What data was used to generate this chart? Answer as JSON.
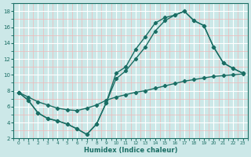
{
  "xlabel": "Humidex (Indice chaleur)",
  "background_color": "#cce8e8",
  "grid_color_major": "#ffffff",
  "grid_color_minor": "#f0b8b8",
  "line_color": "#1a6e64",
  "xlim": [
    -0.5,
    23.5
  ],
  "ylim": [
    2,
    19
  ],
  "yticks": [
    2,
    4,
    6,
    8,
    10,
    12,
    14,
    16,
    18
  ],
  "xticks": [
    0,
    1,
    2,
    3,
    4,
    5,
    6,
    7,
    8,
    9,
    10,
    11,
    12,
    13,
    14,
    15,
    16,
    17,
    18,
    19,
    20,
    21,
    22,
    23
  ],
  "curve1_x": [
    0,
    1,
    2,
    3,
    4,
    5,
    6,
    7,
    8,
    9,
    10,
    11,
    12,
    13,
    14,
    15,
    16,
    17,
    18,
    19,
    20,
    21,
    22,
    23
  ],
  "curve1_y": [
    7.8,
    6.8,
    5.2,
    4.5,
    4.2,
    3.8,
    3.2,
    2.5,
    3.8,
    6.5,
    10.2,
    11.0,
    13.2,
    14.8,
    16.5,
    17.2,
    17.5,
    18.0,
    16.8,
    16.2,
    13.5,
    11.5,
    10.8,
    10.2
  ],
  "curve2_x": [
    0,
    1,
    2,
    3,
    4,
    5,
    6,
    7,
    8,
    9,
    10,
    11,
    12,
    13,
    14,
    15,
    16,
    17,
    18,
    19,
    20,
    21,
    22,
    23
  ],
  "curve2_y": [
    7.8,
    6.8,
    5.2,
    4.5,
    4.2,
    3.8,
    3.2,
    2.5,
    3.8,
    6.5,
    9.5,
    10.5,
    12.0,
    13.5,
    15.5,
    16.8,
    17.5,
    18.0,
    16.8,
    16.2,
    13.5,
    11.5,
    10.8,
    10.2
  ],
  "curve3_x": [
    0,
    1,
    2,
    3,
    4,
    5,
    6,
    7,
    8,
    9,
    10,
    11,
    12,
    13,
    14,
    15,
    16,
    17,
    18,
    19,
    20,
    21,
    22,
    23
  ],
  "curve3_y": [
    7.8,
    7.2,
    6.6,
    6.2,
    5.8,
    5.6,
    5.5,
    5.8,
    6.2,
    6.8,
    7.2,
    7.5,
    7.8,
    8.0,
    8.3,
    8.6,
    8.9,
    9.2,
    9.4,
    9.6,
    9.8,
    9.9,
    10.0,
    10.1
  ]
}
